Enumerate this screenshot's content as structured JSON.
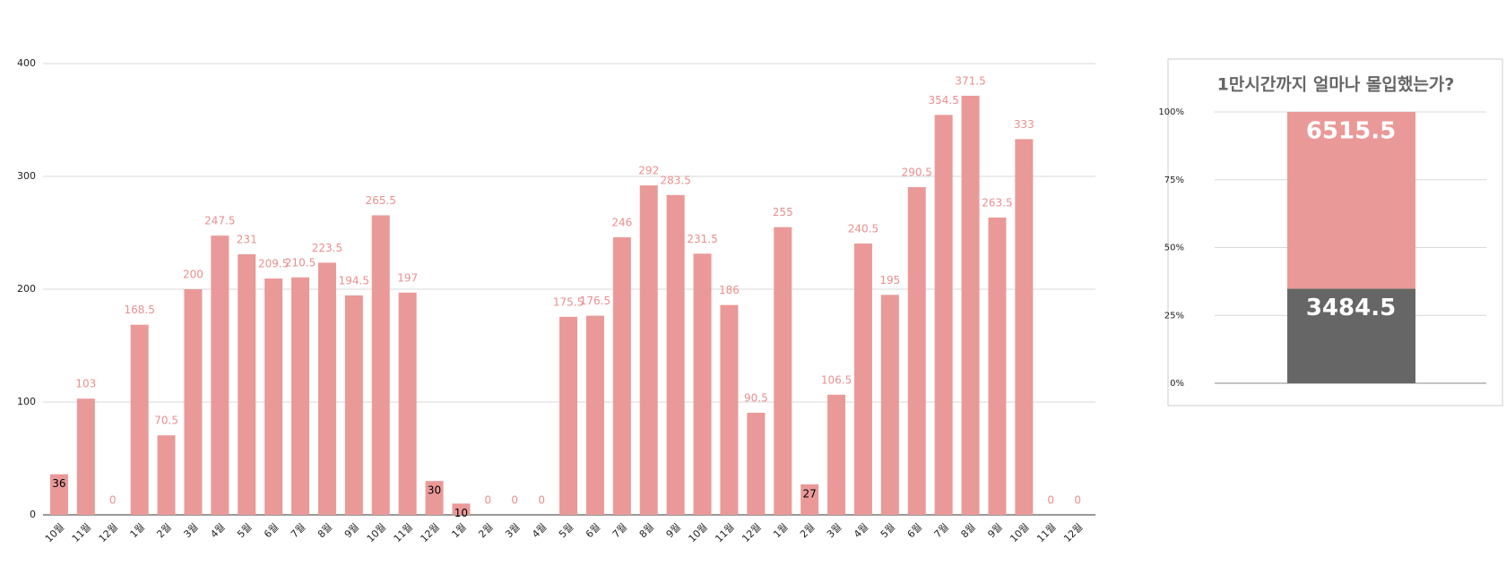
{
  "chart_data": [
    {
      "type": "bar",
      "categories": [
        "10월",
        "11월",
        "12월",
        "1월",
        "2월",
        "3월",
        "4월",
        "5월",
        "6월",
        "7월",
        "8월",
        "9월",
        "10월",
        "11월",
        "12월",
        "1월",
        "2월",
        "3월",
        "4월",
        "5월",
        "6월",
        "7월",
        "8월",
        "9월",
        "10월",
        "11월",
        "12월",
        "1월",
        "2월",
        "3월",
        "4월",
        "5월",
        "6월",
        "7월",
        "8월",
        "9월",
        "10월",
        "11월",
        "12월"
      ],
      "values": [
        36,
        103,
        0,
        168.5,
        70.5,
        200,
        247.5,
        231,
        209.5,
        210.5,
        223.5,
        194.5,
        265.5,
        197,
        30,
        10,
        0,
        0,
        0,
        175.5,
        176.5,
        246,
        292,
        283.5,
        231.5,
        186,
        90.5,
        255,
        27,
        106.5,
        240.5,
        195,
        290.5,
        354.5,
        371.5,
        263.5,
        333,
        0,
        0
      ],
      "color": "#ea9999",
      "ylim": [
        0,
        400
      ],
      "yticks": [
        0,
        100,
        200,
        300,
        400
      ],
      "grid": true
    },
    {
      "type": "stacked_bar_100",
      "title": "1만시간까지 얼마나 몰입했는가?",
      "series": [
        {
          "color": "#666666",
          "values": [
            3484.5
          ]
        },
        {
          "color": "#ea9999",
          "values": [
            6515.5
          ]
        }
      ],
      "ylim": [
        0,
        100
      ],
      "yticks": [
        {
          "value": 0,
          "label": "0%"
        },
        {
          "value": 25,
          "label": "25%"
        },
        {
          "value": 50,
          "label": "50%"
        },
        {
          "value": 75,
          "label": "75%"
        },
        {
          "value": 100,
          "label": "100%"
        }
      ],
      "grid": true
    }
  ]
}
